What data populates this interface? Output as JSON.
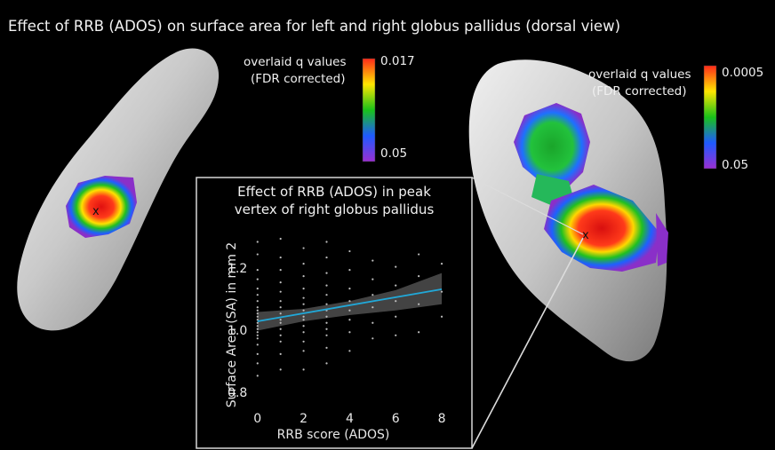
{
  "figure": {
    "title": "Effect of RRB (ADOS) on surface area for left and right globus pallidus (dorsal view)"
  },
  "colorbar_left": {
    "label_line1": "overlaid q values",
    "label_line2": "(FDR corrected)",
    "max_label": "0.017",
    "min_label": "0.05",
    "colors": [
      "#ff2a1a",
      "#ffe600",
      "#19c219",
      "#1e5aff",
      "#9a2fd2"
    ]
  },
  "colorbar_right": {
    "label_line1": "overlaid q values",
    "label_line2": "(FDR corrected)",
    "max_label": "0.0005",
    "min_label": "0.05",
    "colors": [
      "#ff2a1a",
      "#ffe600",
      "#19c219",
      "#1e5aff",
      "#9a2fd2"
    ]
  },
  "peak_marker": "x",
  "inset": {
    "title_line1": "Effect of RRB (ADOS) in peak",
    "title_line2": "vertex of right globus pallidus"
  },
  "chart_data": {
    "type": "scatter",
    "xlabel": "RRB score (ADOS)",
    "ylabel": "Surface Area (SA) in mm 2",
    "xlim": [
      -0.3,
      8.5
    ],
    "ylim": [
      0.75,
      1.32
    ],
    "x_ticks": [
      "0",
      "2",
      "4",
      "6",
      "8"
    ],
    "y_ticks": [
      "0.8",
      "1.0",
      "1.2"
    ],
    "grid": false,
    "fit_line": {
      "x": [
        0,
        8
      ],
      "y": [
        1.035,
        1.138
      ],
      "color": "#21a8d8"
    },
    "confidence_band": {
      "x": [
        0,
        2,
        4,
        6,
        8
      ],
      "lower": [
        1.005,
        1.035,
        1.055,
        1.07,
        1.09
      ],
      "upper": [
        1.065,
        1.075,
        1.1,
        1.135,
        1.19
      ]
    },
    "points": [
      {
        "x": 0,
        "y": 0.86
      },
      {
        "x": 0,
        "y": 0.9
      },
      {
        "x": 0,
        "y": 0.93
      },
      {
        "x": 0,
        "y": 0.96
      },
      {
        "x": 0,
        "y": 0.98
      },
      {
        "x": 0,
        "y": 0.99
      },
      {
        "x": 0,
        "y": 1.0
      },
      {
        "x": 0,
        "y": 1.01
      },
      {
        "x": 0,
        "y": 1.02
      },
      {
        "x": 0,
        "y": 1.03
      },
      {
        "x": 0,
        "y": 1.04
      },
      {
        "x": 0,
        "y": 1.05
      },
      {
        "x": 0,
        "y": 1.06
      },
      {
        "x": 0,
        "y": 1.07
      },
      {
        "x": 0,
        "y": 1.08
      },
      {
        "x": 0,
        "y": 1.1
      },
      {
        "x": 0,
        "y": 1.12
      },
      {
        "x": 0,
        "y": 1.14
      },
      {
        "x": 0,
        "y": 1.17
      },
      {
        "x": 0,
        "y": 1.2
      },
      {
        "x": 0,
        "y": 1.25
      },
      {
        "x": 0,
        "y": 1.29
      },
      {
        "x": 1,
        "y": 0.88
      },
      {
        "x": 1,
        "y": 0.93
      },
      {
        "x": 1,
        "y": 0.97
      },
      {
        "x": 1,
        "y": 0.99
      },
      {
        "x": 1,
        "y": 1.01
      },
      {
        "x": 1,
        "y": 1.03
      },
      {
        "x": 1,
        "y": 1.04
      },
      {
        "x": 1,
        "y": 1.06
      },
      {
        "x": 1,
        "y": 1.08
      },
      {
        "x": 1,
        "y": 1.1
      },
      {
        "x": 1,
        "y": 1.13
      },
      {
        "x": 1,
        "y": 1.16
      },
      {
        "x": 1,
        "y": 1.2
      },
      {
        "x": 1,
        "y": 1.24
      },
      {
        "x": 1,
        "y": 1.3
      },
      {
        "x": 2,
        "y": 0.88
      },
      {
        "x": 2,
        "y": 0.94
      },
      {
        "x": 2,
        "y": 0.97
      },
      {
        "x": 2,
        "y": 1.0
      },
      {
        "x": 2,
        "y": 1.02
      },
      {
        "x": 2,
        "y": 1.04
      },
      {
        "x": 2,
        "y": 1.05
      },
      {
        "x": 2,
        "y": 1.07
      },
      {
        "x": 2,
        "y": 1.09
      },
      {
        "x": 2,
        "y": 1.11
      },
      {
        "x": 2,
        "y": 1.14
      },
      {
        "x": 2,
        "y": 1.18
      },
      {
        "x": 2,
        "y": 1.22
      },
      {
        "x": 2,
        "y": 1.27
      },
      {
        "x": 3,
        "y": 0.9
      },
      {
        "x": 3,
        "y": 0.95
      },
      {
        "x": 3,
        "y": 0.99
      },
      {
        "x": 3,
        "y": 1.01
      },
      {
        "x": 3,
        "y": 1.03
      },
      {
        "x": 3,
        "y": 1.05
      },
      {
        "x": 3,
        "y": 1.07
      },
      {
        "x": 3,
        "y": 1.09
      },
      {
        "x": 3,
        "y": 1.12
      },
      {
        "x": 3,
        "y": 1.15
      },
      {
        "x": 3,
        "y": 1.19
      },
      {
        "x": 3,
        "y": 1.24
      },
      {
        "x": 3,
        "y": 1.29
      },
      {
        "x": 4,
        "y": 0.94
      },
      {
        "x": 4,
        "y": 1.0
      },
      {
        "x": 4,
        "y": 1.04
      },
      {
        "x": 4,
        "y": 1.07
      },
      {
        "x": 4,
        "y": 1.1
      },
      {
        "x": 4,
        "y": 1.14
      },
      {
        "x": 4,
        "y": 1.2
      },
      {
        "x": 4,
        "y": 1.26
      },
      {
        "x": 5,
        "y": 0.98
      },
      {
        "x": 5,
        "y": 1.03
      },
      {
        "x": 5,
        "y": 1.08
      },
      {
        "x": 5,
        "y": 1.12
      },
      {
        "x": 5,
        "y": 1.17
      },
      {
        "x": 5,
        "y": 1.23
      },
      {
        "x": 6,
        "y": 0.99
      },
      {
        "x": 6,
        "y": 1.05
      },
      {
        "x": 6,
        "y": 1.1
      },
      {
        "x": 6,
        "y": 1.15
      },
      {
        "x": 6,
        "y": 1.21
      },
      {
        "x": 7,
        "y": 1.0
      },
      {
        "x": 7,
        "y": 1.09
      },
      {
        "x": 7,
        "y": 1.18
      },
      {
        "x": 7,
        "y": 1.25
      },
      {
        "x": 8,
        "y": 1.05
      },
      {
        "x": 8,
        "y": 1.13
      },
      {
        "x": 8,
        "y": 1.22
      }
    ]
  }
}
